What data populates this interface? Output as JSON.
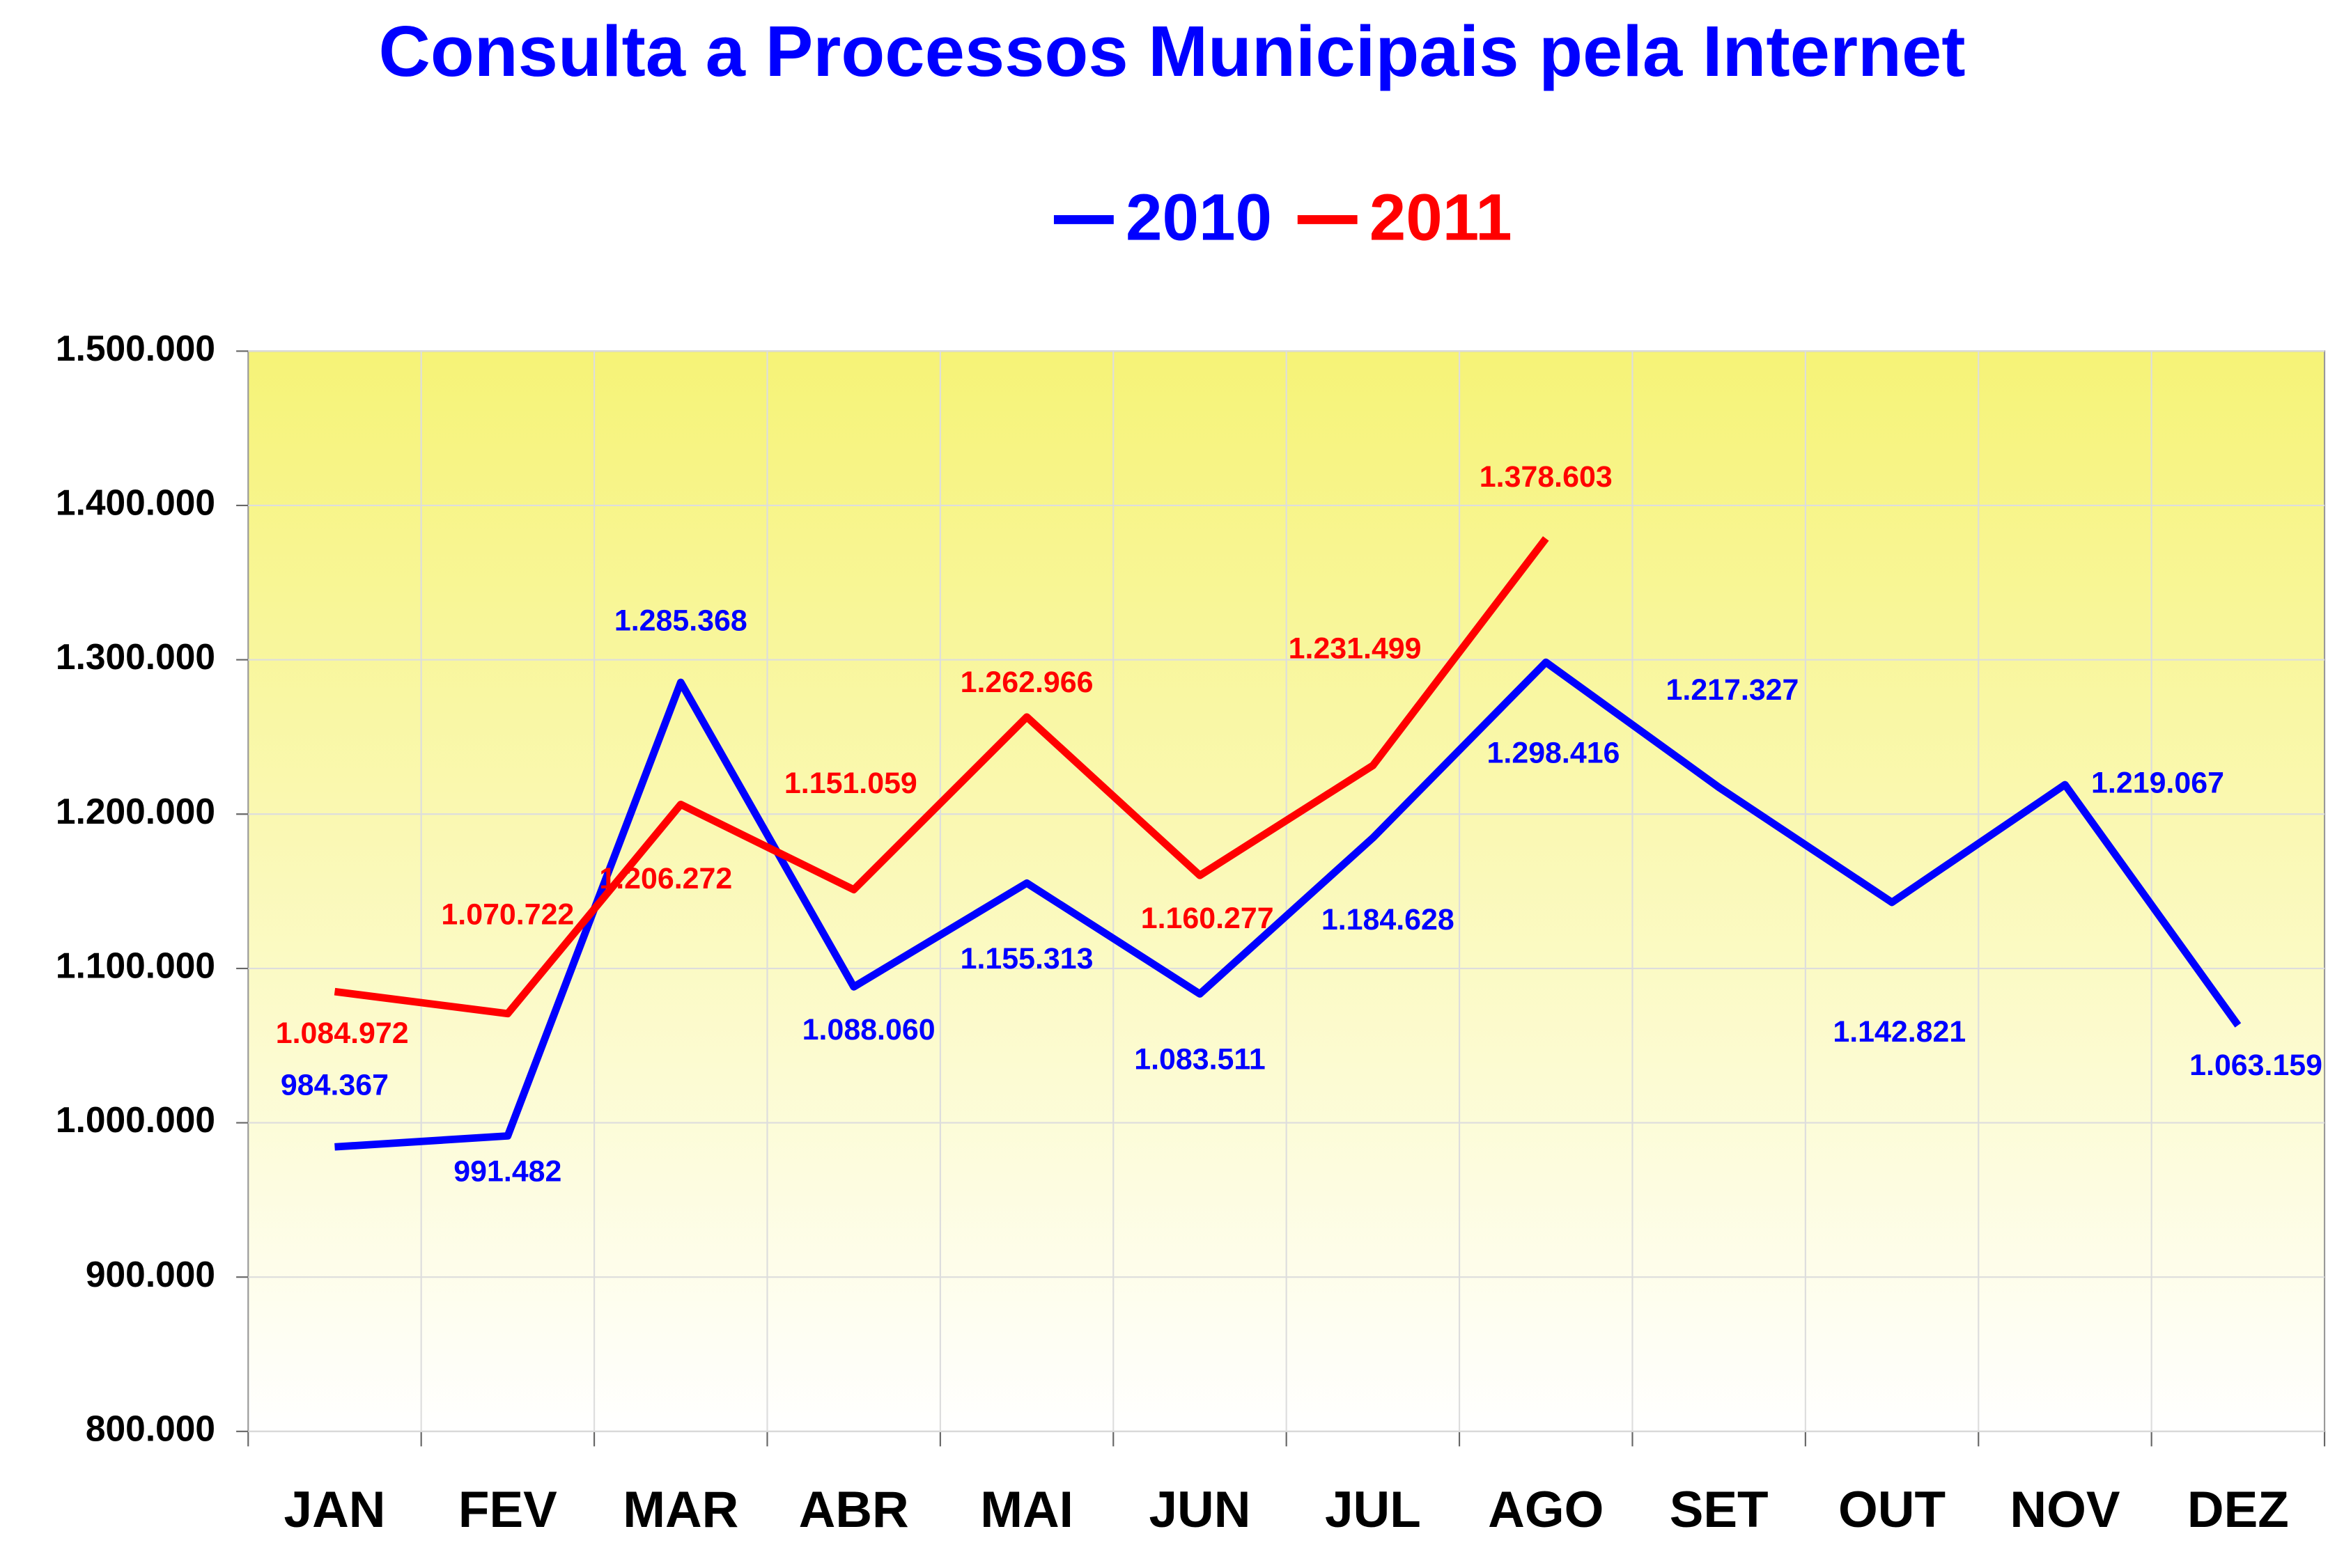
{
  "chart_data": {
    "type": "line",
    "title": "Consulta a Processos Municipais pela Internet",
    "categories": [
      "JAN",
      "FEV",
      "MAR",
      "ABR",
      "MAI",
      "JUN",
      "JUL",
      "AGO",
      "SET",
      "OUT",
      "NOV",
      "DEZ"
    ],
    "series": [
      {
        "name": "2010",
        "color": "#0000ff",
        "values": [
          984367,
          991482,
          1285368,
          1088060,
          1155313,
          1083511,
          1184628,
          1298416,
          1217327,
          1142821,
          1219067,
          1063159
        ],
        "value_labels": [
          "984.367",
          "991.482",
          "1.285.368",
          "1.088.060",
          "1.155.313",
          "1.083.511",
          "1.184.628",
          "1.298.416",
          "1.217.327",
          "1.142.821",
          "1.219.067",
          "1.063.159"
        ]
      },
      {
        "name": "2011",
        "color": "#ff0000",
        "values": [
          1084972,
          1070722,
          1206272,
          1151059,
          1262966,
          1160277,
          1231499,
          1378603,
          null,
          null,
          null,
          null
        ],
        "value_labels": [
          "1.084.972",
          "1.070.722",
          "1.206.272",
          "1.151.059",
          "1.262.966",
          "1.160.277",
          "1.231.499",
          "1.378.603",
          null,
          null,
          null,
          null
        ]
      }
    ],
    "ylim": [
      800000,
      1500000
    ],
    "yticks": [
      {
        "value": 800000,
        "label": "800.000"
      },
      {
        "value": 900000,
        "label": "900.000"
      },
      {
        "value": 1000000,
        "label": "1.000.000"
      },
      {
        "value": 1100000,
        "label": "1.100.000"
      },
      {
        "value": 1200000,
        "label": "1.200.000"
      },
      {
        "value": 1300000,
        "label": "1.300.000"
      },
      {
        "value": 1400000,
        "label": "1.400.000"
      },
      {
        "value": 1500000,
        "label": "1.500.000"
      }
    ],
    "grid": true,
    "legend": "top"
  }
}
